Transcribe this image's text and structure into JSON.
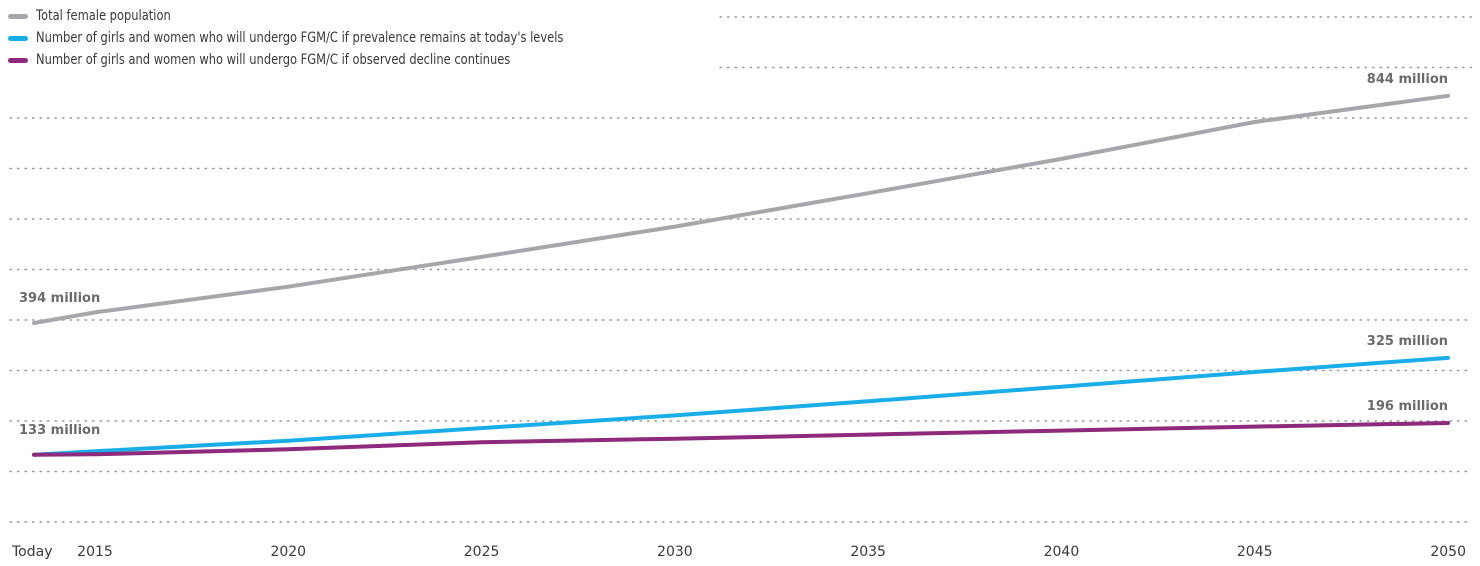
{
  "chart_data": {
    "type": "line",
    "x_tick_labels": [
      "Today",
      "2015",
      "2020",
      "2025",
      "2030",
      "2035",
      "2040",
      "2045",
      "2050"
    ],
    "series": [
      {
        "name": "Total female population",
        "color": "#a7a6aa",
        "x": [
          2013,
          2015,
          2020,
          2025,
          2030,
          2035,
          2040,
          2045,
          2050
        ],
        "values": [
          394,
          415,
          466,
          525,
          585,
          651,
          719,
          792,
          844
        ]
      },
      {
        "name": "Number of girls and women who will undergo FGM/C if prevalence remains at today's levels",
        "color": "#1aaee8",
        "x": [
          2013,
          2015,
          2020,
          2025,
          2030,
          2035,
          2040,
          2045,
          2050
        ],
        "values": [
          133,
          140,
          161,
          186,
          211,
          239,
          268,
          297,
          325
        ]
      },
      {
        "name": "Number of girls and women who will undergo FGM/C if observed decline continues",
        "color": "#8e2a7b",
        "x": [
          2013,
          2015,
          2020,
          2025,
          2030,
          2035,
          2040,
          2045,
          2050
        ],
        "values": [
          133,
          134,
          144,
          158,
          165,
          173,
          181,
          189,
          196
        ]
      }
    ],
    "data_labels": [
      {
        "series": 0,
        "point": 0,
        "text": "394 million"
      },
      {
        "series": 0,
        "point": 8,
        "text": "844 million"
      },
      {
        "series": 1,
        "point": 0,
        "text": "133 million"
      },
      {
        "series": 1,
        "point": 8,
        "text": "325 million"
      },
      {
        "series": 2,
        "point": 8,
        "text": "196 million"
      }
    ],
    "ylim": [
      0,
      1000
    ],
    "grid": "horizontal dotted",
    "legend_position": "top-left",
    "title": "",
    "xlabel": "",
    "ylabel": ""
  }
}
